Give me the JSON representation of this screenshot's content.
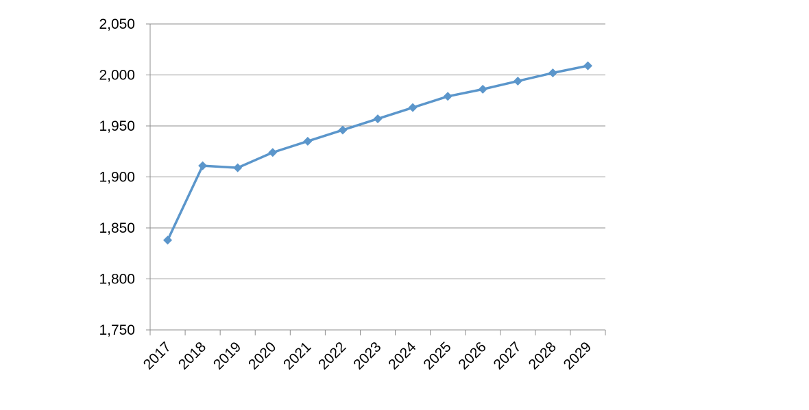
{
  "chart_data": {
    "type": "line",
    "title": "",
    "xlabel": "",
    "ylabel": "",
    "categories": [
      "2017",
      "2018",
      "2019",
      "2020",
      "2021",
      "2022",
      "2023",
      "2024",
      "2025",
      "2026",
      "2027",
      "2028",
      "2029"
    ],
    "series": [
      {
        "values": [
          1838,
          1911,
          1909,
          1924,
          1935,
          1946,
          1957,
          1968,
          1979,
          1986,
          1994,
          2002,
          2009
        ]
      }
    ],
    "ylim": [
      1750,
      2050
    ],
    "yticks": [
      1750,
      1800,
      1850,
      1900,
      1950,
      2000,
      2050
    ],
    "ytick_labels": [
      "1,750",
      "1,800",
      "1,850",
      "1,900",
      "1,950",
      "2,000",
      "2,050"
    ],
    "grid": true,
    "marker": "diamond",
    "colors": {
      "series": "#5b96cb",
      "grid": "#8c8c8c"
    }
  }
}
